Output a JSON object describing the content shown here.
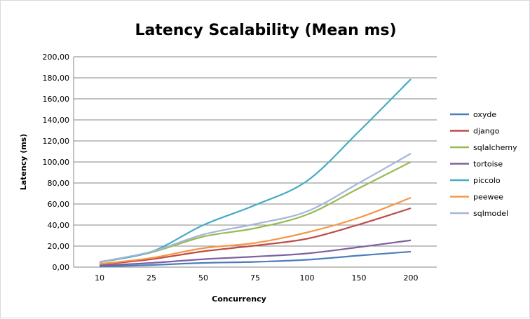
{
  "chart_data": {
    "type": "line",
    "title": "Latency Scalability (Mean ms)",
    "xlabel": "Concurrency",
    "ylabel": "Latency (ms)",
    "categories": [
      "10",
      "25",
      "50",
      "75",
      "100",
      "150",
      "200"
    ],
    "ylim": [
      0,
      200
    ],
    "yticks": [
      "0,00",
      "20,00",
      "40,00",
      "60,00",
      "80,00",
      "100,00",
      "120,00",
      "140,00",
      "160,00",
      "180,00",
      "200,00"
    ],
    "grid": true,
    "legend": "right",
    "series": [
      {
        "name": "oxyde",
        "color": "#4a7ebb",
        "values": [
          0.5,
          2,
          4,
          5,
          7,
          11,
          14.7
        ]
      },
      {
        "name": "django",
        "color": "#be4b48",
        "values": [
          2.5,
          7.5,
          15,
          20.5,
          27,
          40.5,
          56
        ]
      },
      {
        "name": "sqlalchemy",
        "color": "#98b954",
        "values": [
          4.5,
          14,
          29,
          37,
          50,
          75,
          100
        ]
      },
      {
        "name": "tortoise",
        "color": "#7d60a0",
        "values": [
          1.5,
          4,
          7.5,
          10,
          13,
          19,
          25.5
        ]
      },
      {
        "name": "piccolo",
        "color": "#46aac5",
        "values": [
          5,
          14.7,
          40,
          59,
          82,
          129,
          178.7
        ]
      },
      {
        "name": "peewee",
        "color": "#f79646",
        "values": [
          3,
          8.7,
          18,
          23,
          33,
          47,
          66
        ]
      },
      {
        "name": "sqlmodel",
        "color": "#a5b6d9",
        "values": [
          5,
          14.7,
          31,
          41,
          53,
          80,
          108
        ]
      }
    ]
  }
}
